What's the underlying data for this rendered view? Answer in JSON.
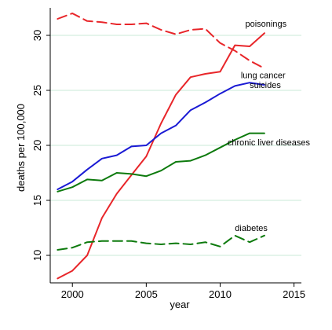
{
  "chart_data": {
    "type": "line",
    "title": "",
    "xlabel": "year",
    "ylabel": "deaths per 100,000",
    "xlim": [
      1998.5,
      2015.5
    ],
    "ylim": [
      7.5,
      32.5
    ],
    "xticks": [
      "2000",
      "2005",
      "2010",
      "2015"
    ],
    "yticks": [
      "10",
      "15",
      "20",
      "25",
      "30"
    ],
    "grid": true,
    "series": [
      {
        "name": "poisonings",
        "color": "#e8262a",
        "dash": "solid",
        "x": [
          1999,
          2000,
          2001,
          2002,
          2003,
          2004,
          2005,
          2006,
          2007,
          2008,
          2009,
          2010,
          2011,
          2012,
          2013
        ],
        "values": [
          7.9,
          8.6,
          10.0,
          13.4,
          15.6,
          17.3,
          19.0,
          22.0,
          24.6,
          26.2,
          26.5,
          26.7,
          29.1,
          29.0,
          30.2
        ]
      },
      {
        "name": "lung cancer",
        "color": "#e8262a",
        "dash": "dashed",
        "x": [
          1999,
          2000,
          2001,
          2002,
          2003,
          2004,
          2005,
          2006,
          2007,
          2008,
          2009,
          2010,
          2011,
          2012,
          2013
        ],
        "values": [
          31.5,
          32.0,
          31.3,
          31.2,
          31.0,
          31.0,
          31.1,
          30.5,
          30.1,
          30.5,
          30.6,
          29.3,
          28.6,
          27.7,
          27.0
        ]
      },
      {
        "name": "suicides",
        "color": "#1a1ad4",
        "dash": "solid",
        "x": [
          1999,
          2000,
          2001,
          2002,
          2003,
          2004,
          2005,
          2006,
          2007,
          2008,
          2009,
          2010,
          2011,
          2012,
          2013
        ],
        "values": [
          16.0,
          16.7,
          17.8,
          18.8,
          19.1,
          19.9,
          20.0,
          21.1,
          21.8,
          23.2,
          23.9,
          24.7,
          25.4,
          25.7,
          25.5
        ]
      },
      {
        "name": "chronic liver diseases",
        "color": "#0d7a0d",
        "dash": "solid",
        "x": [
          1999,
          2000,
          2001,
          2002,
          2003,
          2004,
          2005,
          2006,
          2007,
          2008,
          2009,
          2010,
          2011,
          2012,
          2013
        ],
        "values": [
          15.8,
          16.2,
          16.9,
          16.8,
          17.5,
          17.4,
          17.2,
          17.7,
          18.5,
          18.6,
          19.1,
          19.8,
          20.5,
          21.1,
          21.1
        ]
      },
      {
        "name": "diabetes",
        "color": "#0d7a0d",
        "dash": "dashed",
        "x": [
          1999,
          2000,
          2001,
          2002,
          2003,
          2004,
          2005,
          2006,
          2007,
          2008,
          2009,
          2010,
          2011,
          2012,
          2013
        ],
        "values": [
          10.5,
          10.7,
          11.2,
          11.3,
          11.3,
          11.3,
          11.1,
          11.0,
          11.1,
          11.0,
          11.2,
          10.8,
          11.8,
          11.2,
          11.8
        ]
      }
    ],
    "annotations": [
      {
        "text": "poisonings",
        "x": 2011.7,
        "y": 30.8
      },
      {
        "text": "lung cancer",
        "x": 2011.4,
        "y": 26.1
      },
      {
        "text": "suicides",
        "x": 2012.0,
        "y": 25.2
      },
      {
        "text": "chronic liver diseases",
        "x": 2010.5,
        "y": 20.0
      },
      {
        "text": "diabetes",
        "x": 2011.0,
        "y": 12.2
      }
    ]
  }
}
